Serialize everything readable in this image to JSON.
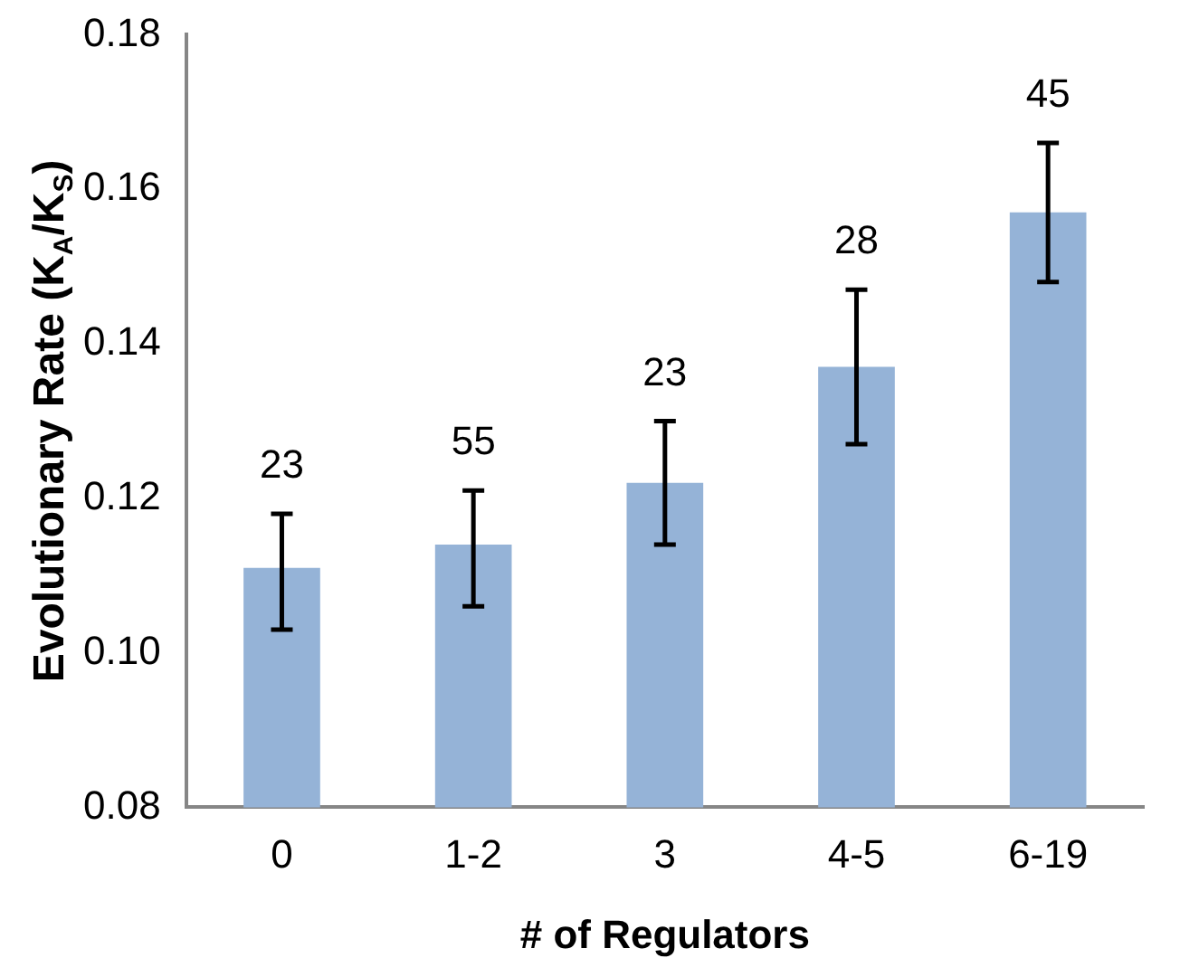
{
  "chart_data": {
    "type": "bar",
    "xlabel": "# of Regulators",
    "ylabel": "Evolutionary Rate (K$_{A}$/K$_{S}$)",
    "categories": [
      "0",
      "1-2",
      "3",
      "4-5",
      "6-19"
    ],
    "values": [
      0.111,
      0.114,
      0.122,
      0.137,
      0.157
    ],
    "errors": [
      [
        0.103,
        0.118
      ],
      [
        0.106,
        0.121
      ],
      [
        0.114,
        0.13
      ],
      [
        0.127,
        0.147
      ],
      [
        0.148,
        0.166
      ]
    ],
    "color": "#95b3d7",
    "ylim": [
      0.08,
      0.18
    ],
    "yticks": [
      0.08,
      {
        "value": 0.1,
        "label": "0.10"
      },
      0.12,
      0.14,
      0.16,
      0.18
    ],
    "grid": false,
    "legend": false,
    "annotations": [
      "23",
      "55",
      "23",
      "28",
      "45"
    ]
  }
}
